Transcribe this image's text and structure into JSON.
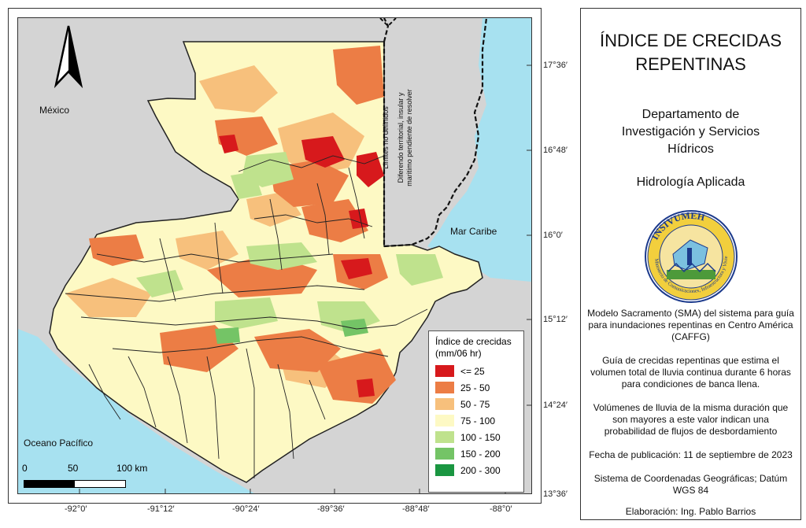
{
  "map": {
    "north_arrow": "north-arrow-icon",
    "labels": {
      "mexico": "México",
      "mar_caribe": "Mar Caribe",
      "oceano_pacifico": "Oceano Pacífico",
      "limites": "Limites no definidos",
      "diferendo": "Diferendo  territorial,  insular  y",
      "maritimo": "maritimo pendiente de resolver"
    },
    "lat_labels": [
      "17°36′",
      "16°48′",
      "16°0′",
      "15°12′",
      "14°24′",
      "13°36′"
    ],
    "lon_labels": [
      "-92°0′",
      "-91°12′",
      "-90°24′",
      "-89°36′",
      "-88°48′",
      "-88°0′"
    ],
    "scale": {
      "zero": "0",
      "mid": "50",
      "end": "100 km"
    },
    "colors": {
      "land_gray": "#d4d4d4",
      "sea": "#a7e1f0",
      "boundary": "#222222"
    }
  },
  "legend": {
    "title_line1": "Índice de crecidas",
    "title_line2": "(mm/06 hr)",
    "items": [
      {
        "label": "<= 25",
        "color": "#d7191c"
      },
      {
        "label": "25 - 50",
        "color": "#ec7d45"
      },
      {
        "label": "50 - 75",
        "color": "#f7c07c"
      },
      {
        "label": "75 - 100",
        "color": "#fdf9c4"
      },
      {
        "label": "100 - 150",
        "color": "#bfe28d"
      },
      {
        "label": "150 - 200",
        "color": "#74c466"
      },
      {
        "label": "200 - 300",
        "color": "#1a9641"
      }
    ]
  },
  "panel": {
    "title_line1": "ÍNDICE DE CRECIDAS",
    "title_line2": "REPENTINAS",
    "dept_line1": "Departamento de",
    "dept_line2": "Investigación y Servicios",
    "dept_line3": "Hídricos",
    "subtitle": "Hidrología Aplicada",
    "logo_text": "INSIVUMEH",
    "logo_ring": "Ministerio de Comunicaciones, Infraestructura y Vivienda",
    "model_line1": "Modelo Sacramento (SMA) del sistema para guía",
    "model_line2": "para inundaciones repentinas en Centro América",
    "model_line3": "(CAFFG)",
    "guide_line1": "Guía de crecidas repentinas que estima el",
    "guide_line2": "volumen total de lluvia continua durante 6 horas",
    "guide_line3": "para condiciones de banca llena.",
    "vol_line1": "Volúmenes de lluvia de la misma duración que",
    "vol_line2": "son mayores a este valor indican una",
    "vol_line3": "probabilidad de flujos de desbordamiento",
    "fecha": "Fecha de publicación: 11 de septiembre de 2023",
    "coords_line1": "Sistema de Coordenadas Geográficas; Datúm",
    "coords_line2": "WGS 84",
    "elaboracion": "Elaboración: Ing. Pablo Barrios"
  }
}
